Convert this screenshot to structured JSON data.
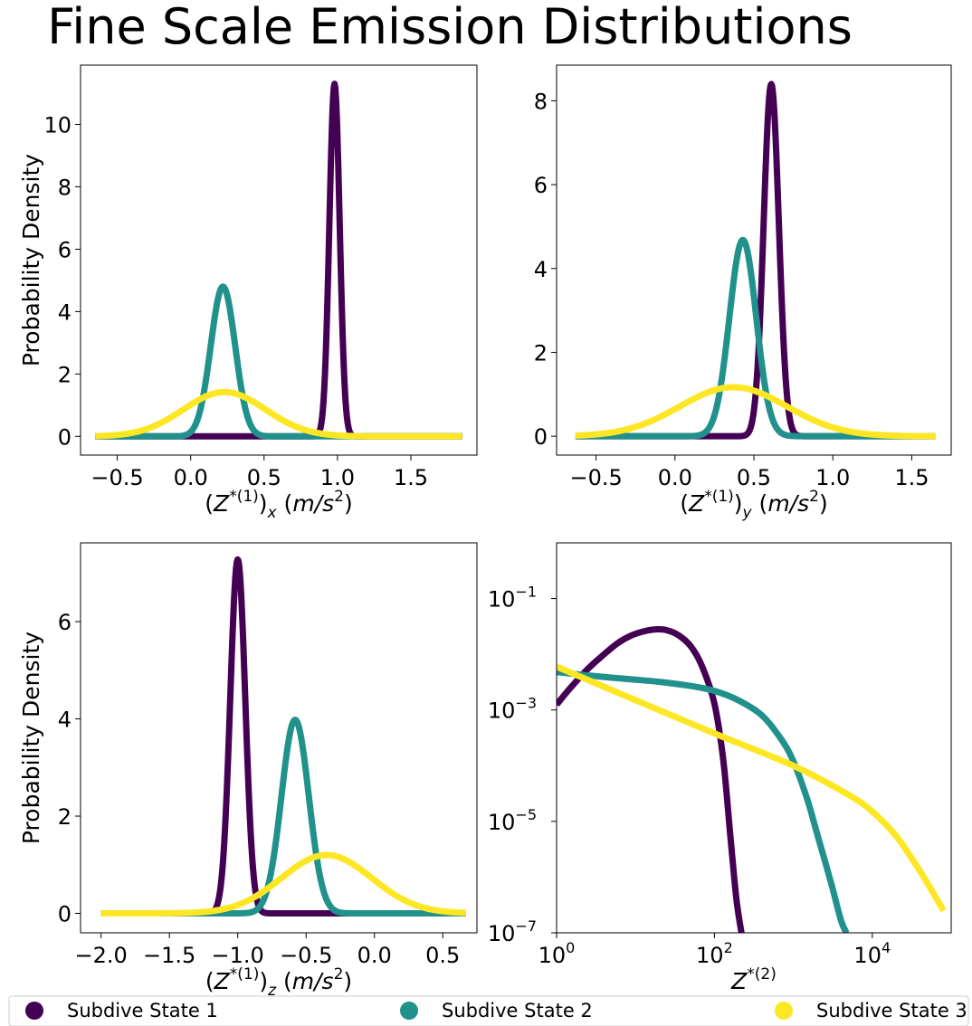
{
  "figure": {
    "title": "Fine Scale Emission Distributions",
    "legend": [
      {
        "label": "Subdive State 1",
        "color": "#440154"
      },
      {
        "label": "Subdive State 2",
        "color": "#21918c"
      },
      {
        "label": "Subdive State 3",
        "color": "#fde725"
      }
    ]
  },
  "chart_data": [
    {
      "type": "line",
      "panel": "top-left",
      "xlabel_base": "(Z",
      "xlabel_sup": "*(1)",
      "xlabel_close": ")",
      "xlabel_sub": "x",
      "xlabel_unit": "(m/s",
      "xlabel_unit_sup": "2",
      "xlabel_unit_close": ")",
      "ylabel": "Probability Density",
      "xlim": [
        -0.75,
        1.95
      ],
      "ylim": [
        -0.6,
        11.9
      ],
      "xticks": [
        -0.5,
        0.0,
        0.5,
        1.0,
        1.5
      ],
      "xtick_labels": [
        "−0.5",
        "0.0",
        "0.5",
        "1.0",
        "1.5"
      ],
      "yticks": [
        0,
        2,
        4,
        6,
        8,
        10
      ],
      "ytick_labels": [
        "0",
        "2",
        "4",
        "6",
        "8",
        "10"
      ],
      "x_range": [
        -0.65,
        1.85
      ],
      "series": [
        {
          "name": "Subdive State 1",
          "color": "#440154",
          "mean": 0.98,
          "std": 0.035,
          "peak": 11.3
        },
        {
          "name": "Subdive State 2",
          "color": "#21918c",
          "mean": 0.22,
          "std": 0.083,
          "peak": 4.8
        },
        {
          "name": "Subdive State 3",
          "color": "#fde725",
          "mean": 0.23,
          "std": 0.28,
          "peak": 1.42
        }
      ]
    },
    {
      "type": "line",
      "panel": "top-right",
      "xlabel_base": "(Z",
      "xlabel_sup": "*(1)",
      "xlabel_close": ")",
      "xlabel_sub": "y",
      "xlabel_unit": "(m/s",
      "xlabel_unit_sup": "2",
      "xlabel_unit_close": ")",
      "ylabel": "",
      "xlim": [
        -0.75,
        1.75
      ],
      "ylim": [
        -0.45,
        8.85
      ],
      "xticks": [
        -0.5,
        0.0,
        0.5,
        1.0,
        1.5
      ],
      "xtick_labels": [
        "−0.5",
        "0.0",
        "0.5",
        "1.0",
        "1.5"
      ],
      "yticks": [
        0,
        2,
        4,
        6,
        8
      ],
      "ytick_labels": [
        "0",
        "2",
        "4",
        "6",
        "8"
      ],
      "x_range": [
        -0.63,
        1.65
      ],
      "series": [
        {
          "name": "Subdive State 1",
          "color": "#440154",
          "mean": 0.61,
          "std": 0.048,
          "peak": 8.4
        },
        {
          "name": "Subdive State 2",
          "color": "#21918c",
          "mean": 0.43,
          "std": 0.085,
          "peak": 4.68
        },
        {
          "name": "Subdive State 3",
          "color": "#fde725",
          "mean": 0.37,
          "std": 0.34,
          "peak": 1.17
        }
      ]
    },
    {
      "type": "line",
      "panel": "bottom-left",
      "xlabel_base": "(Z",
      "xlabel_sup": "*(1)",
      "xlabel_close": ")",
      "xlabel_sub": "z",
      "xlabel_unit": "(m/s",
      "xlabel_unit_sup": "2",
      "xlabel_unit_close": ")",
      "ylabel": "Probability Density",
      "xlim": [
        -2.15,
        0.75
      ],
      "ylim": [
        -0.4,
        7.62
      ],
      "xticks": [
        -2.0,
        -1.5,
        -1.0,
        -0.5,
        0.0,
        0.5
      ],
      "xtick_labels": [
        "−2.0",
        "−1.5",
        "−1.0",
        "−0.5",
        "0.0",
        "0.5"
      ],
      "yticks": [
        0,
        2,
        4,
        6
      ],
      "ytick_labels": [
        "0",
        "2",
        "4",
        "6"
      ],
      "x_range": [
        -2.0,
        0.67
      ],
      "series": [
        {
          "name": "Subdive State 1",
          "color": "#440154",
          "mean": -1.0,
          "std": 0.055,
          "peak": 7.28
        },
        {
          "name": "Subdive State 2",
          "color": "#21918c",
          "mean": -0.58,
          "std": 0.1,
          "peak": 3.98
        },
        {
          "name": "Subdive State 3",
          "color": "#fde725",
          "mean": -0.35,
          "std": 0.33,
          "peak": 1.2
        }
      ]
    },
    {
      "type": "line",
      "panel": "bottom-right",
      "scale": "log-log",
      "xlabel_base": "Z",
      "xlabel_sup": "*(2)",
      "ylabel": "",
      "xlim": [
        1,
        100000
      ],
      "ylim": [
        1e-07,
        1
      ],
      "xticks": [
        1,
        100,
        10000
      ],
      "xtick_bases": [
        "10",
        "10",
        "10"
      ],
      "xtick_exps": [
        "0",
        "2",
        "4"
      ],
      "yticks": [
        0.1,
        0.001,
        1e-05,
        1e-07
      ],
      "ytick_bases": [
        "10",
        "10",
        "10",
        "10"
      ],
      "ytick_exps": [
        "−1",
        "−3",
        "−5",
        "−7"
      ],
      "series": [
        {
          "name": "Subdive State 1",
          "color": "#440154",
          "x": [
            1,
            1.5,
            2.5,
            4,
            6,
            9,
            13,
            18,
            25,
            35,
            50,
            70,
            100,
            130,
            160,
            190,
            220
          ],
          "y": [
            0.00125,
            0.0025,
            0.0055,
            0.01,
            0.016,
            0.022,
            0.026,
            0.028,
            0.027,
            0.022,
            0.014,
            0.006,
            0.0013,
            0.00012,
            5e-06,
            4e-07,
            1e-07
          ]
        },
        {
          "name": "Subdive State 2",
          "color": "#21918c",
          "x": [
            1,
            2,
            5,
            10,
            20,
            50,
            100,
            200,
            400,
            700,
            1000,
            1500,
            2000,
            3000,
            4000,
            4700
          ],
          "y": [
            0.0048,
            0.0043,
            0.0038,
            0.0035,
            0.0032,
            0.0027,
            0.0022,
            0.0015,
            0.0008,
            0.0003,
            0.00012,
            2.5e-05,
            6e-06,
            8e-07,
            1.7e-07,
            1e-07
          ]
        },
        {
          "name": "Subdive State 3",
          "color": "#fde725",
          "x": [
            1,
            10,
            100,
            1000,
            5000,
            10000,
            20000,
            40000,
            60000,
            80000
          ],
          "y": [
            0.006,
            0.0015,
            0.00038,
            0.0001,
            3e-05,
            1.5e-05,
            5.5e-06,
            1.3e-06,
            5e-07,
            2.5e-07
          ]
        }
      ]
    }
  ]
}
